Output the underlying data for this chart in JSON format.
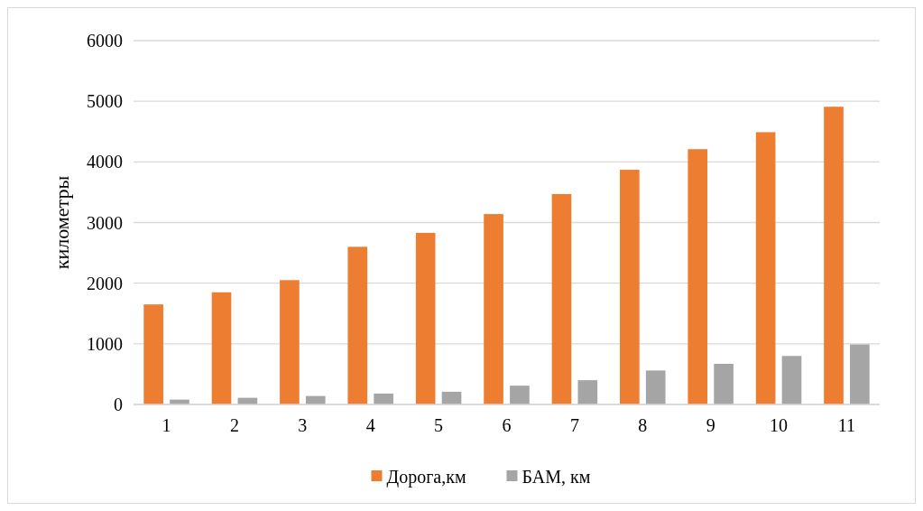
{
  "chart_data": {
    "type": "bar",
    "ylabel": "километры",
    "categories": [
      "1",
      "2",
      "3",
      "4",
      "5",
      "6",
      "7",
      "8",
      "9",
      "10",
      "11"
    ],
    "series": [
      {
        "name": "Дорога,км",
        "color": "#ed7d31",
        "values": [
          1650,
          1850,
          2050,
          2600,
          2830,
          3140,
          3470,
          3870,
          4210,
          4490,
          4910
        ]
      },
      {
        "name": "БАМ, км",
        "color": "#a5a5a5",
        "values": [
          80,
          110,
          140,
          180,
          210,
          310,
          400,
          560,
          670,
          800,
          990
        ]
      }
    ],
    "ylim": [
      0,
      6000
    ],
    "yticks": [
      0,
      1000,
      2000,
      3000,
      4000,
      5000,
      6000
    ],
    "grid": "y",
    "legend": "bottom"
  }
}
